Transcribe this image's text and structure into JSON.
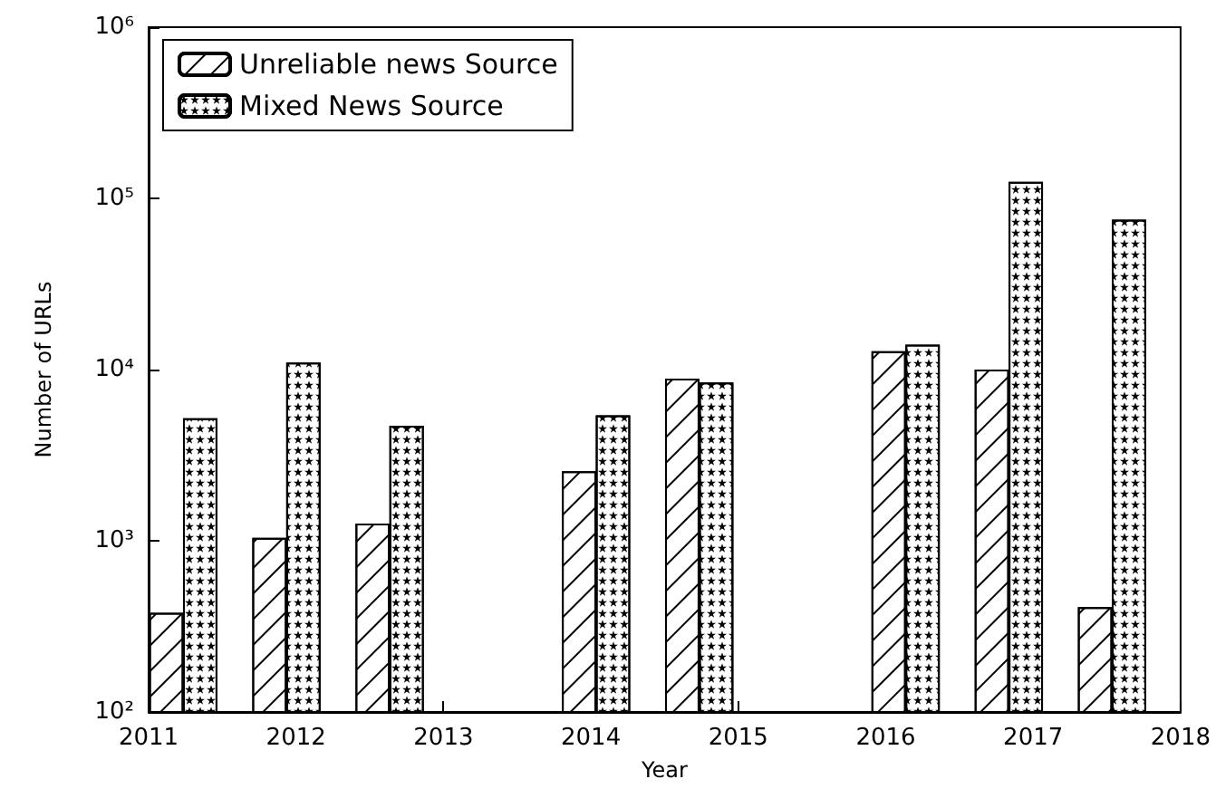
{
  "chart_data": {
    "type": "bar",
    "xlabel": "Year",
    "ylabel": "Number of URLs",
    "log": "y",
    "xlim": [
      2011,
      2018
    ],
    "xticks": [
      2011,
      2012,
      2013,
      2014,
      2015,
      2016,
      2017,
      2018
    ],
    "ylim": [
      100,
      1000000
    ],
    "yticks": [
      {
        "value": 100,
        "label": "10²"
      },
      {
        "value": 1000,
        "label": "10³"
      },
      {
        "value": 10000,
        "label": "10⁴"
      },
      {
        "value": 100000,
        "label": "10⁵"
      },
      {
        "value": 1000000,
        "label": "10⁶"
      }
    ],
    "grid": false,
    "legend": "top left",
    "series": [
      {
        "name": "Unreliable news Source",
        "color": "#ffffff",
        "x": [
          2011.12,
          2011.82,
          2012.52,
          2013.92,
          2014.62,
          2016.02,
          2016.72,
          2017.42
        ],
        "values": [
          380,
          1040,
          1260,
          2550,
          8850,
          12800,
          10000,
          410
        ]
      },
      {
        "name": "Mixed News Source",
        "color": "#ffffff",
        "x": [
          2011.35,
          2012.05,
          2012.75,
          2014.15,
          2014.85,
          2016.25,
          2016.95,
          2017.65
        ],
        "values": [
          5200,
          11000,
          4700,
          5400,
          8400,
          14000,
          125000,
          75000
        ]
      }
    ]
  }
}
